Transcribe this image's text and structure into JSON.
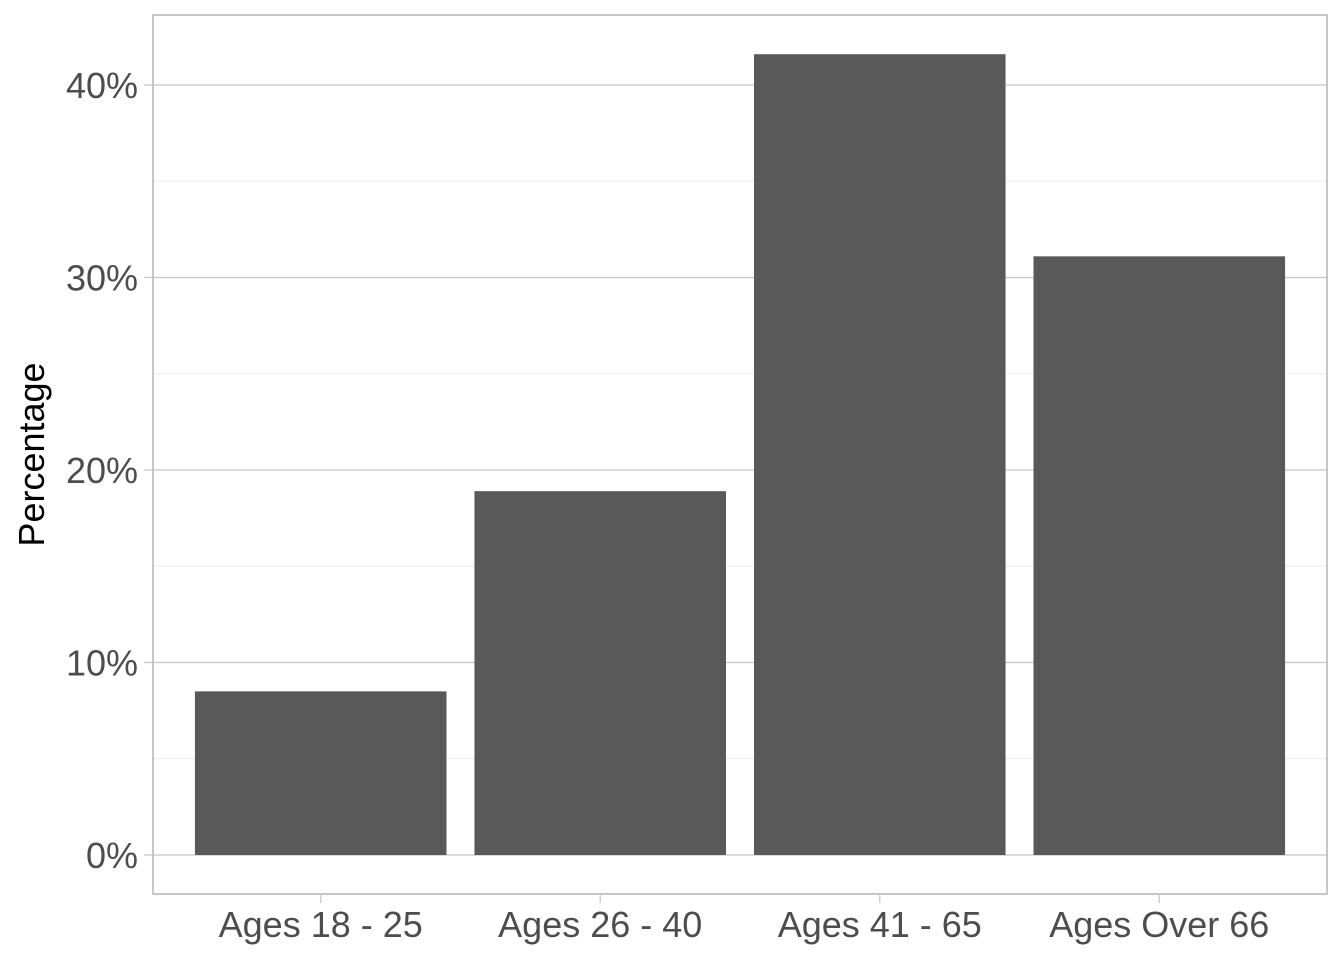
{
  "chart_data": {
    "type": "bar",
    "title": "",
    "xlabel": "",
    "ylabel": "Percentage",
    "categories": [
      "Ages 18 - 25",
      "Ages 26 - 40",
      "Ages 41 - 65",
      "Ages Over 66"
    ],
    "values": [
      8.5,
      18.9,
      41.6,
      31.1
    ],
    "ylim": [
      -2,
      43.6
    ],
    "y_ticks": [
      0,
      10,
      20,
      30,
      40
    ],
    "y_tick_labels": [
      "0%",
      "10%",
      "20%",
      "30%",
      "40%"
    ],
    "grid": true,
    "colors": {
      "bar": "#595959",
      "grid_major": "#c8c8c8",
      "grid_minor": "#ebebeb",
      "panel_border": "#b3b3b3"
    }
  }
}
